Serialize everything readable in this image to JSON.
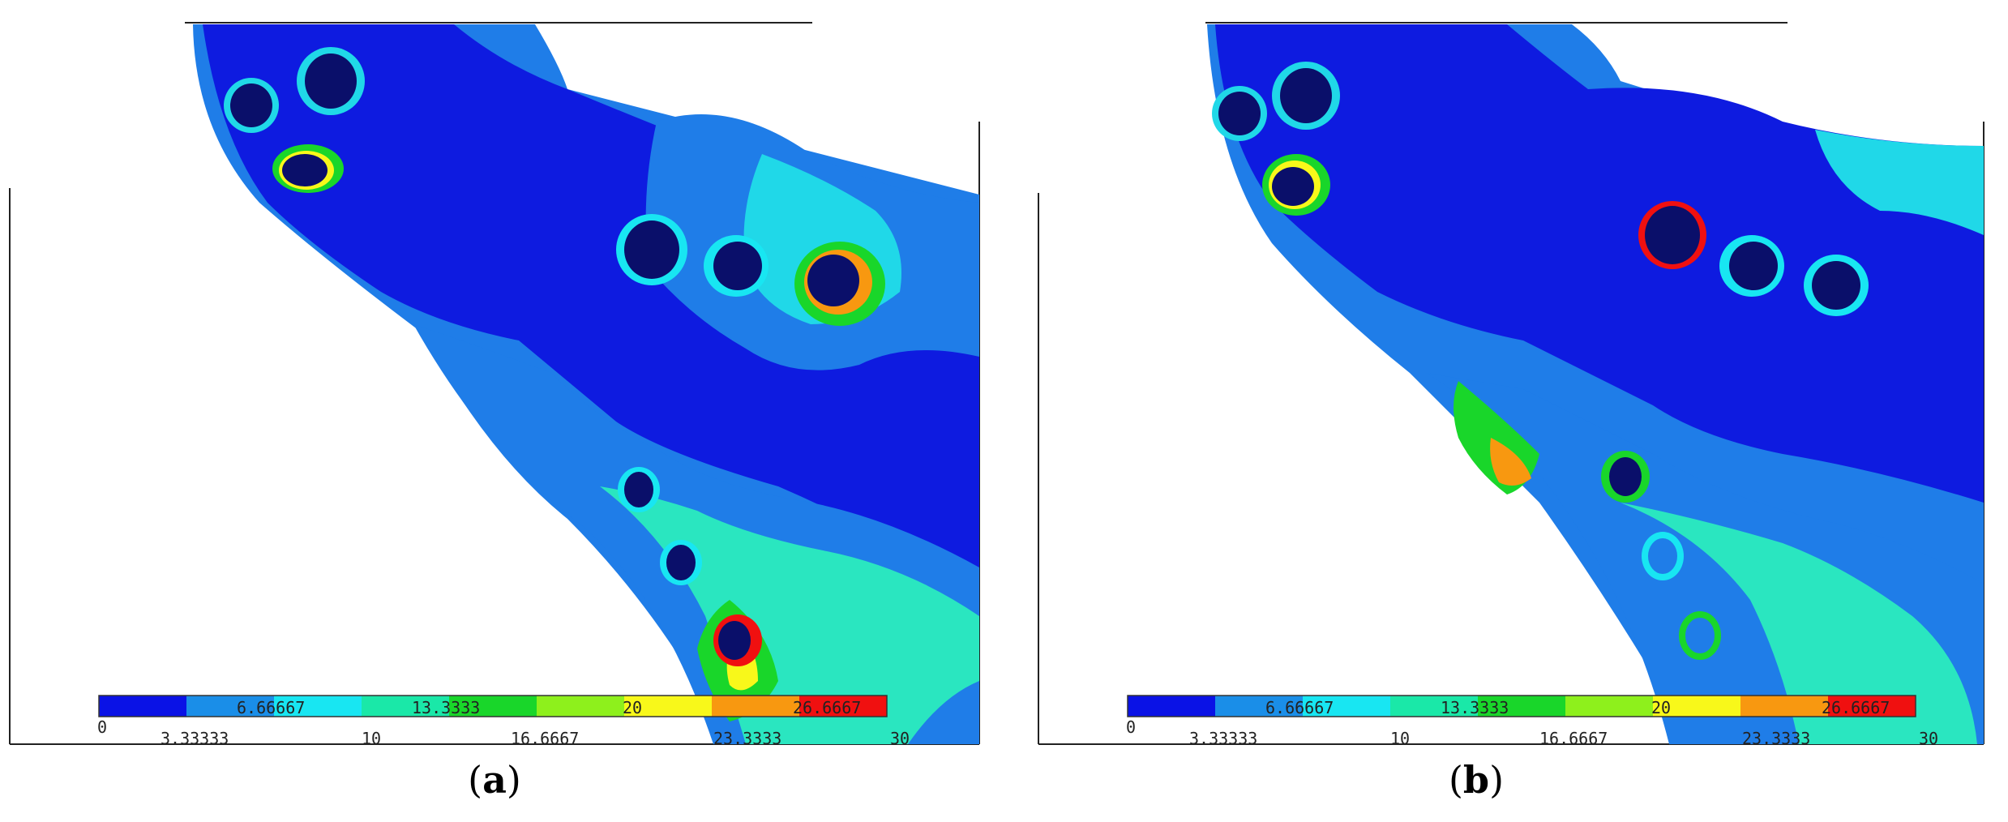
{
  "colors": {
    "legend": [
      "#0a12e6",
      "#1a8ee8",
      "#18e6f2",
      "#1ae8a8",
      "#19d62a",
      "#8ef01c",
      "#f8f81a",
      "#f89810",
      "#f01010"
    ],
    "deep_blue": "#0e1be0",
    "mid_blue": "#1f7de8",
    "cyan": "#20d8e8",
    "teal": "#2ae6c0"
  },
  "legend": {
    "lower_ticks": [
      "0",
      "6.66667",
      "13.3333",
      "20",
      "26.6667"
    ],
    "upper_ticks": [
      "3.33333",
      "10",
      "16.6667",
      "23.3333",
      "30"
    ]
  },
  "panels": [
    {
      "id": "a",
      "caption_open": "(",
      "caption_letter": "a",
      "caption_close": ")"
    },
    {
      "id": "b",
      "caption_open": "(",
      "caption_letter": "b",
      "caption_close": ")"
    }
  ]
}
